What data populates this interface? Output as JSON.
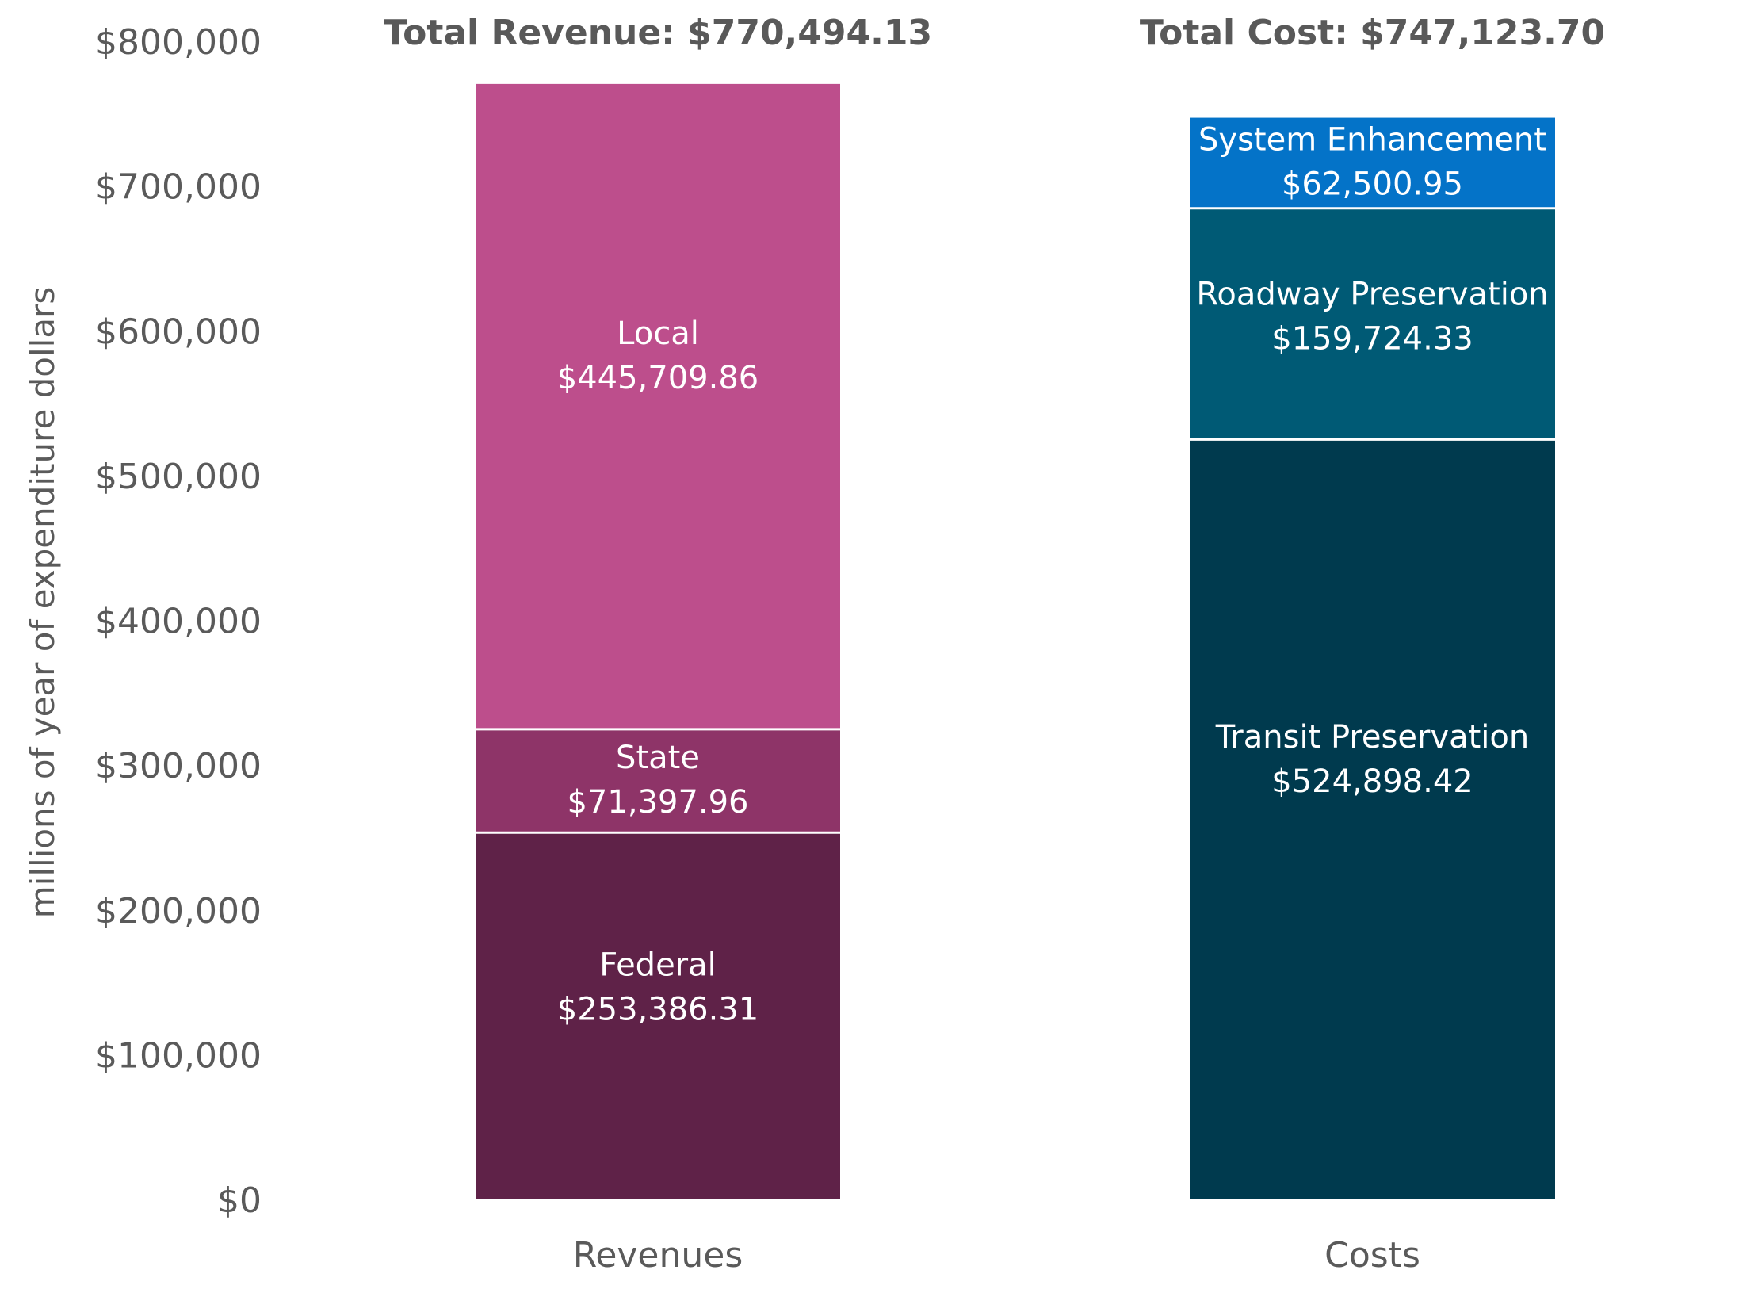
{
  "chart_data": {
    "type": "bar",
    "stacked": true,
    "ylabel": "millions of year of expenditure dollars",
    "ylim": [
      0,
      800000
    ],
    "yticks": [
      {
        "value": 0,
        "label": "$0"
      },
      {
        "value": 100000,
        "label": "$100,000"
      },
      {
        "value": 200000,
        "label": "$200,000"
      },
      {
        "value": 300000,
        "label": "$300,000"
      },
      {
        "value": 400000,
        "label": "$400,000"
      },
      {
        "value": 500000,
        "label": "$500,000"
      },
      {
        "value": 600000,
        "label": "$600,000"
      },
      {
        "value": 700000,
        "label": "$700,000"
      },
      {
        "value": 800000,
        "label": "$800,000"
      }
    ],
    "grid": false,
    "bars": [
      {
        "category": "Revenues",
        "total_label": "Total Revenue: $770,494.13",
        "segments": [
          {
            "name": "Federal",
            "value": 253386.31,
            "value_label": "$253,386.31",
            "color": "#5f2248"
          },
          {
            "name": "State",
            "value": 71397.96,
            "value_label": "$71,397.96",
            "color": "#8e3468"
          },
          {
            "name": "Local",
            "value": 445709.86,
            "value_label": "$445,709.86",
            "color": "#bd4e8c"
          }
        ]
      },
      {
        "category": "Costs",
        "total_label": "Total Cost: $747,123.70",
        "segments": [
          {
            "name": "Transit Preservation",
            "value": 524898.42,
            "value_label": "$524,898.42",
            "color": "#003a4e"
          },
          {
            "name": "Roadway Preservation",
            "value": 159724.33,
            "value_label": "$159,724.33",
            "color": "#005a75"
          },
          {
            "name": "System Enhancement",
            "value": 62500.95,
            "value_label": "$62,500.95",
            "color": "#0473c8"
          }
        ]
      }
    ]
  }
}
